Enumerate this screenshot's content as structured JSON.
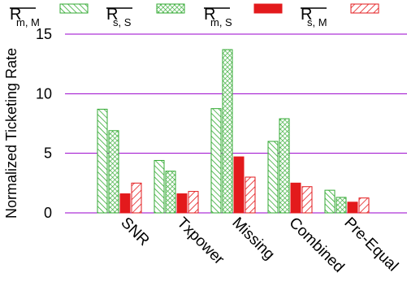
{
  "chart_data": {
    "type": "bar",
    "title": "",
    "xlabel": "",
    "ylabel": "Normalized Ticketing Rate",
    "ylim": [
      0,
      15
    ],
    "yticks": [
      0,
      5,
      10,
      15
    ],
    "grid": true,
    "legend_position": "top",
    "categories": [
      "SNR",
      "Txpower",
      "Missing",
      "Combined",
      "Pre-Equal"
    ],
    "series": [
      {
        "name": "R̄m, M",
        "legend_main": "R",
        "legend_sub": "m, M",
        "pattern": "diag-green",
        "color": "#33aa33",
        "values": [
          8.7,
          4.4,
          8.75,
          6.0,
          1.9
        ]
      },
      {
        "name": "R̄s, S",
        "legend_main": "R",
        "legend_sub": "s, S",
        "pattern": "cross-green",
        "color": "#33aa33",
        "values": [
          6.9,
          3.5,
          13.7,
          7.9,
          1.3
        ]
      },
      {
        "name": "R̄m, S",
        "legend_main": "R",
        "legend_sub": "m, S",
        "pattern": "solid-red",
        "color": "#e31a1c",
        "values": [
          1.6,
          1.6,
          4.7,
          2.5,
          0.9
        ]
      },
      {
        "name": "R̄s, M",
        "legend_main": "R",
        "legend_sub": "s, M",
        "pattern": "diag-red",
        "color": "#e31a1c",
        "values": [
          2.5,
          1.8,
          3.0,
          2.2,
          1.25
        ]
      }
    ],
    "colors": {
      "grid": "#9900cc",
      "axis": "#9900cc"
    }
  }
}
